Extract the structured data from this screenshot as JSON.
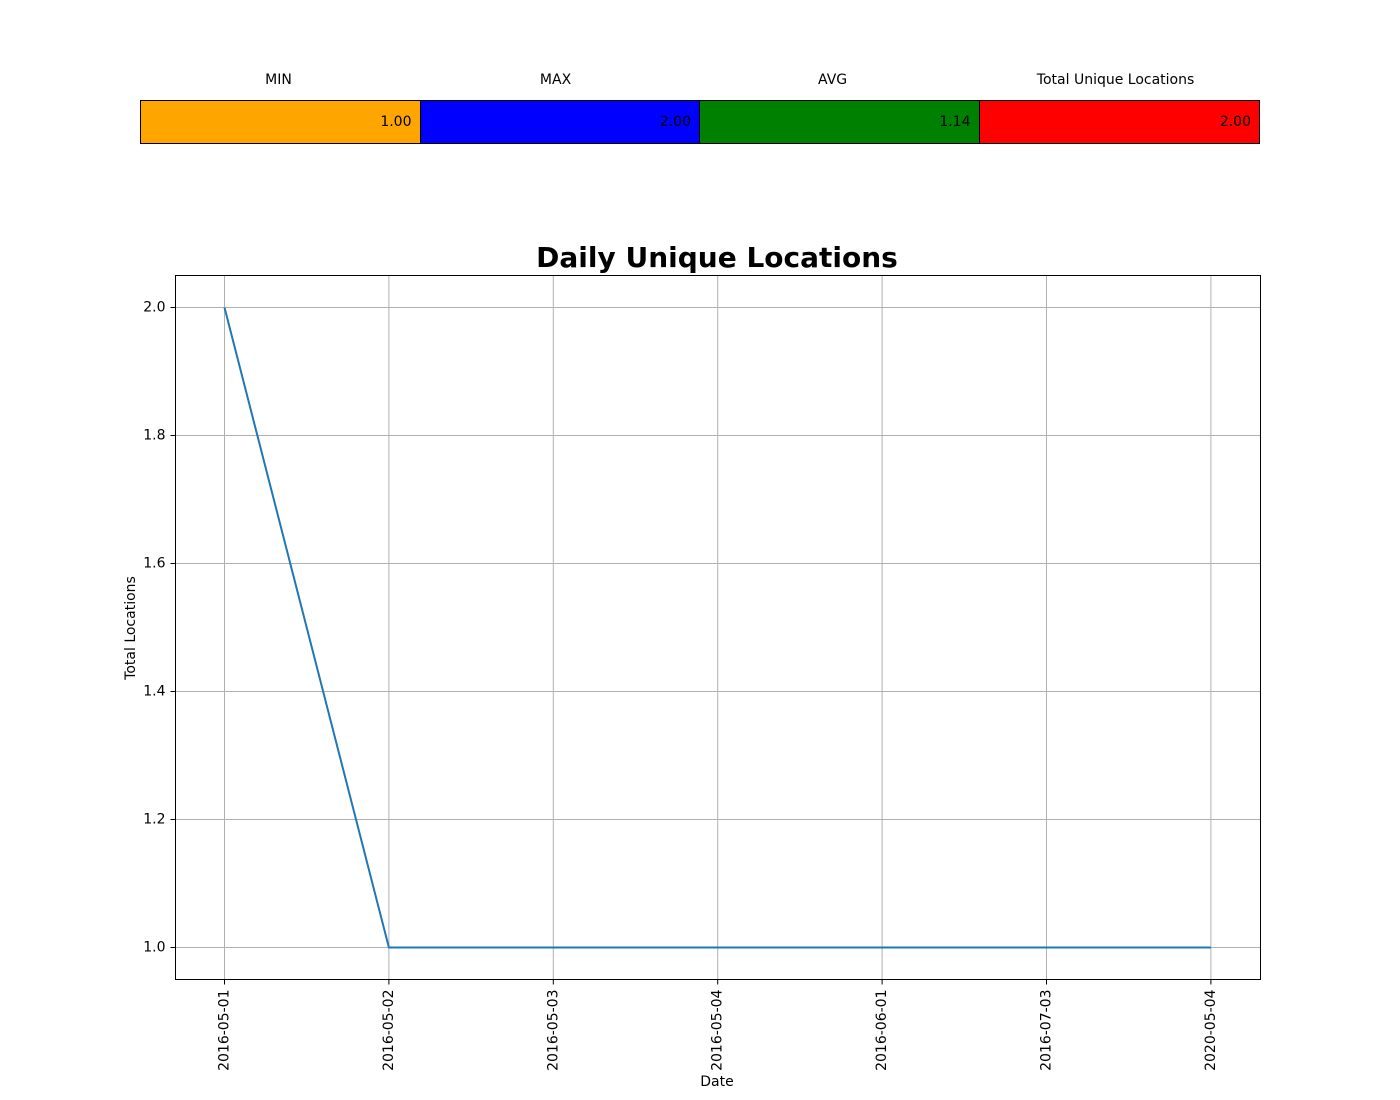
{
  "stats": {
    "headers": [
      "MIN",
      "MAX",
      "AVG",
      "Total Unique Locations"
    ],
    "values": [
      "1.00",
      "2.00",
      "1.14",
      "2.00"
    ],
    "colors": [
      "#ffa500",
      "#0000ff",
      "#008000",
      "#ff0000"
    ]
  },
  "chart_data": {
    "type": "line",
    "title": "Daily Unique Locations",
    "xlabel": "Date",
    "ylabel": "Total Locations",
    "x": [
      "2016-05-01",
      "2016-05-02",
      "2016-05-03",
      "2016-05-04",
      "2016-06-01",
      "2016-07-03",
      "2020-05-04"
    ],
    "series": [
      {
        "values": [
          2,
          1,
          1,
          1,
          1,
          1,
          1
        ],
        "color": "#1f77b4"
      }
    ],
    "ylim": [
      0.95,
      2.05
    ],
    "yticks": [
      "1.0",
      "1.2",
      "1.4",
      "1.6",
      "1.8",
      "2.0"
    ],
    "grid": true
  }
}
